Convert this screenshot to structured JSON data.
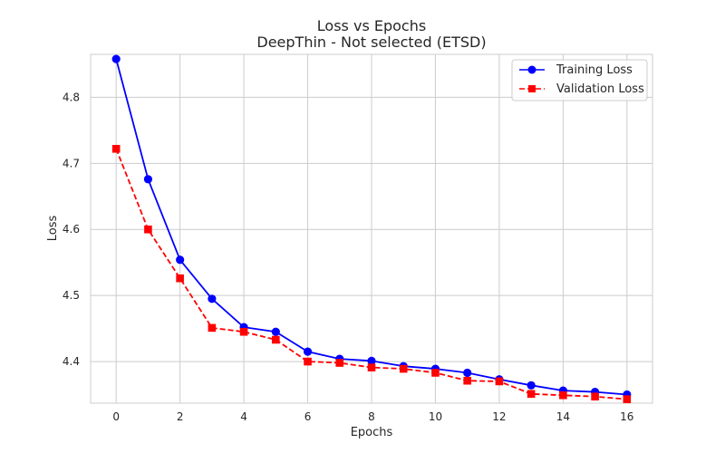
{
  "chart_data": {
    "type": "line",
    "title": "Loss vs Epochs",
    "subtitle": "DeepThin - Not selected (ETSD)",
    "xlabel": "Epochs",
    "ylabel": "Loss",
    "xlim": [
      -0.8,
      16.8
    ],
    "ylim": [
      4.337,
      4.865
    ],
    "xticks": [
      0,
      2,
      4,
      6,
      8,
      10,
      12,
      14,
      16
    ],
    "yticks": [
      4.4,
      4.5,
      4.6,
      4.7,
      4.8
    ],
    "ytick_labels": [
      "4.4",
      "4.5",
      "4.6",
      "4.7",
      "4.8"
    ],
    "grid": true,
    "legend_position": "top-right",
    "x": [
      0,
      1,
      2,
      3,
      4,
      5,
      6,
      7,
      8,
      9,
      10,
      11,
      12,
      13,
      14,
      15,
      16
    ],
    "series": [
      {
        "name": "Training Loss",
        "color": "#0000ff",
        "line_style": "solid",
        "marker": "circle",
        "values": [
          4.858,
          4.676,
          4.554,
          4.495,
          4.452,
          4.445,
          4.415,
          4.404,
          4.401,
          4.393,
          4.389,
          4.383,
          4.373,
          4.364,
          4.356,
          4.354,
          4.35
        ]
      },
      {
        "name": "Validation Loss",
        "color": "#ff0000",
        "line_style": "dashed",
        "marker": "square",
        "values": [
          4.722,
          4.6,
          4.526,
          4.451,
          4.445,
          4.433,
          4.4,
          4.398,
          4.391,
          4.389,
          4.383,
          4.371,
          4.37,
          4.351,
          4.349,
          4.347,
          4.343
        ]
      }
    ]
  }
}
